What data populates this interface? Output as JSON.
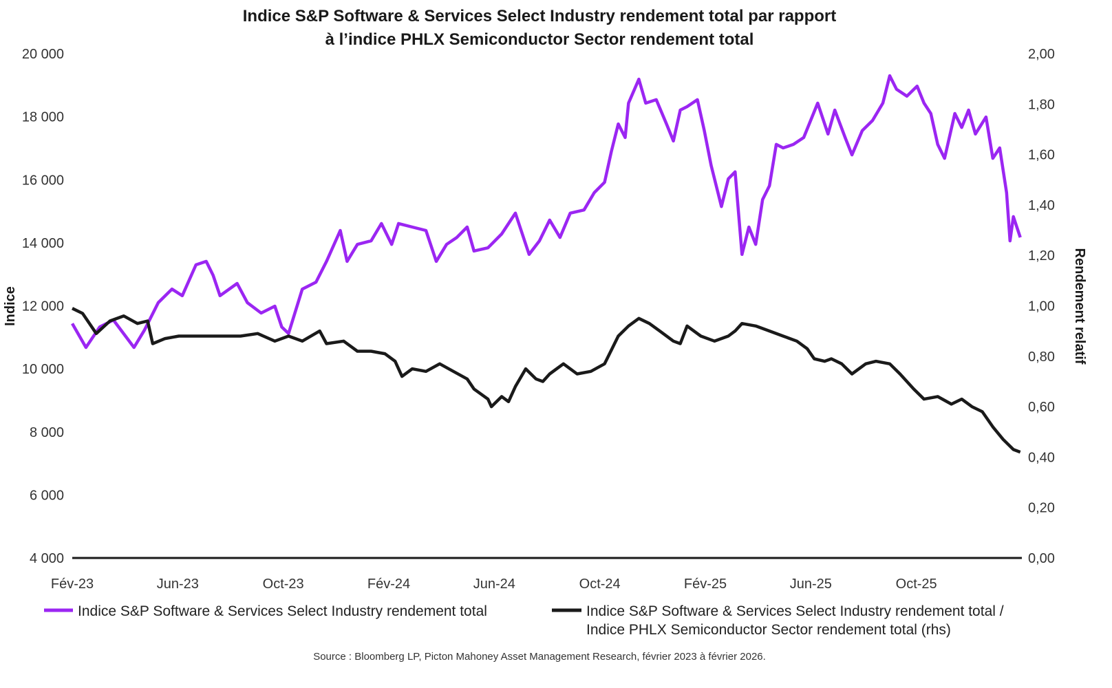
{
  "chart_data": {
    "type": "line",
    "title_lines": [
      "Indice S&P Software & Services Select Industry rendement total par rapport",
      "à l’indice PHLX Semiconductor Sector rendement total"
    ],
    "ylabel": "Indice",
    "y2label": "Rendement relatif",
    "ylim": [
      4000,
      20000
    ],
    "y2lim": [
      0,
      2
    ],
    "yticks": [
      "4 000",
      "6 000",
      "8 000",
      "10 000",
      "12 000",
      "14 000",
      "16 000",
      "18 000",
      "20 000"
    ],
    "y2ticks": [
      "0,00",
      "0,20",
      "0,40",
      "0,60",
      "0,80",
      "1,00",
      "1,20",
      "1,40",
      "1,60",
      "1,80",
      "2,00"
    ],
    "x_unit": "months since Feb 2023",
    "xlim": [
      0,
      36
    ],
    "xticks": [
      {
        "m": 0,
        "label": "Fév-23"
      },
      {
        "m": 4,
        "label": "Jun-23"
      },
      {
        "m": 8,
        "label": "Oct-23"
      },
      {
        "m": 12,
        "label": "Fév-24"
      },
      {
        "m": 16,
        "label": "Jun-24"
      },
      {
        "m": 20,
        "label": "Oct-24"
      },
      {
        "m": 24,
        "label": "Fév-25"
      },
      {
        "m": 28,
        "label": "Jun-25"
      },
      {
        "m": 32,
        "label": "Oct-25"
      }
    ],
    "grid": false,
    "legend_placement": "bottom",
    "series": [
      {
        "name": "Indice S&P Software & Services Select Industry rendement total",
        "axis": "left",
        "color": "#9b26f2",
        "x": [
          0,
          0.52,
          1.04,
          1.56,
          2.34,
          2.73,
          3.26,
          3.78,
          4.17,
          4.69,
          5.08,
          5.34,
          5.6,
          6.25,
          6.64,
          7.16,
          7.68,
          7.94,
          8.2,
          8.72,
          9.24,
          9.64,
          10.16,
          10.42,
          10.81,
          11.33,
          11.72,
          12.11,
          12.37,
          12.89,
          13.41,
          13.8,
          14.19,
          14.58,
          14.97,
          15.23,
          15.76,
          16.28,
          16.8,
          17.32,
          17.71,
          18.1,
          18.49,
          18.88,
          19.4,
          19.79,
          20.18,
          20.44,
          20.7,
          20.96,
          21.09,
          21.48,
          21.74,
          22.14,
          22.53,
          22.79,
          23.05,
          23.31,
          23.7,
          23.96,
          24.22,
          24.61,
          24.87,
          25.13,
          25.39,
          25.65,
          25.91,
          26.17,
          26.43,
          26.69,
          26.95,
          27.34,
          27.73,
          28.26,
          28.65,
          28.91,
          29.3,
          29.56,
          29.95,
          30.34,
          30.73,
          30.99,
          31.25,
          31.64,
          32.03,
          32.29,
          32.55,
          32.81,
          33.07,
          33.46,
          33.72,
          33.98,
          34.24,
          34.64,
          34.9,
          35.16,
          35.42,
          35.55,
          35.68,
          35.94
        ],
        "values": [
          11440,
          10680,
          11330,
          11550,
          10680,
          11220,
          12100,
          12530,
          12320,
          13300,
          13410,
          12970,
          12320,
          12710,
          12100,
          11770,
          11990,
          11330,
          11120,
          12530,
          12750,
          13410,
          14390,
          13410,
          13950,
          14060,
          14610,
          13950,
          14610,
          14500,
          14390,
          13410,
          13950,
          14170,
          14500,
          13740,
          13840,
          14280,
          14940,
          13630,
          14060,
          14720,
          14170,
          14940,
          15040,
          15590,
          15920,
          16900,
          17770,
          17340,
          18430,
          19190,
          18430,
          18540,
          17770,
          17230,
          18210,
          18320,
          18540,
          17560,
          16460,
          15150,
          16030,
          16250,
          13630,
          14500,
          13950,
          15370,
          15810,
          17120,
          17010,
          17120,
          17340,
          18430,
          17450,
          18210,
          17340,
          16790,
          17560,
          17880,
          18430,
          19300,
          18870,
          18650,
          18970,
          18430,
          18100,
          17120,
          16680,
          18100,
          17660,
          18210,
          17450,
          17990,
          16680,
          17010,
          15590,
          14060,
          14830,
          14170
        ]
      },
      {
        "name": "Indice S&P Software & Services Select Industry rendement total / Indice PHLX Semiconductor Sector rendement total (rhs)",
        "legend_lines": [
          "Indice S&P Software & Services Select Industry rendement total /",
          "Indice PHLX Semiconductor Sector rendement total (rhs)"
        ],
        "axis": "right",
        "color": "#1a1a1a",
        "x": [
          0,
          0.39,
          0.91,
          1.43,
          1.95,
          2.47,
          2.86,
          3.05,
          3.52,
          4.04,
          4.82,
          5.6,
          6.38,
          7.03,
          7.68,
          8.2,
          8.72,
          9.38,
          9.64,
          10.29,
          10.81,
          11.33,
          11.85,
          12.24,
          12.5,
          12.89,
          13.41,
          13.93,
          14.45,
          14.97,
          15.23,
          15.76,
          15.89,
          16.28,
          16.54,
          16.8,
          17.19,
          17.58,
          17.84,
          18.1,
          18.62,
          19.14,
          19.66,
          20.18,
          20.7,
          21.09,
          21.48,
          21.88,
          22.27,
          22.79,
          23.05,
          23.31,
          23.83,
          24.35,
          24.87,
          25.13,
          25.39,
          25.91,
          26.43,
          26.95,
          27.47,
          27.86,
          28.13,
          28.52,
          28.78,
          29.17,
          29.56,
          30.08,
          30.47,
          30.99,
          31.38,
          31.9,
          32.29,
          32.81,
          33.33,
          33.72,
          34.11,
          34.5,
          34.9,
          35.29,
          35.68,
          35.94
        ],
        "values": [
          0.99,
          0.97,
          0.89,
          0.94,
          0.96,
          0.93,
          0.94,
          0.85,
          0.87,
          0.88,
          0.88,
          0.88,
          0.88,
          0.89,
          0.86,
          0.88,
          0.86,
          0.9,
          0.85,
          0.86,
          0.82,
          0.82,
          0.81,
          0.78,
          0.72,
          0.75,
          0.74,
          0.77,
          0.74,
          0.71,
          0.67,
          0.63,
          0.6,
          0.64,
          0.62,
          0.68,
          0.75,
          0.71,
          0.7,
          0.73,
          0.77,
          0.73,
          0.74,
          0.77,
          0.88,
          0.92,
          0.95,
          0.93,
          0.9,
          0.86,
          0.85,
          0.92,
          0.88,
          0.86,
          0.88,
          0.9,
          0.93,
          0.92,
          0.9,
          0.88,
          0.86,
          0.83,
          0.79,
          0.78,
          0.79,
          0.77,
          0.73,
          0.77,
          0.78,
          0.77,
          0.73,
          0.67,
          0.63,
          0.64,
          0.61,
          0.63,
          0.6,
          0.58,
          0.52,
          0.47,
          0.43,
          0.42
        ]
      }
    ],
    "source": "Source : Bloomberg LP, Picton Mahoney Asset Management Research, février 2023 à février 2026."
  }
}
